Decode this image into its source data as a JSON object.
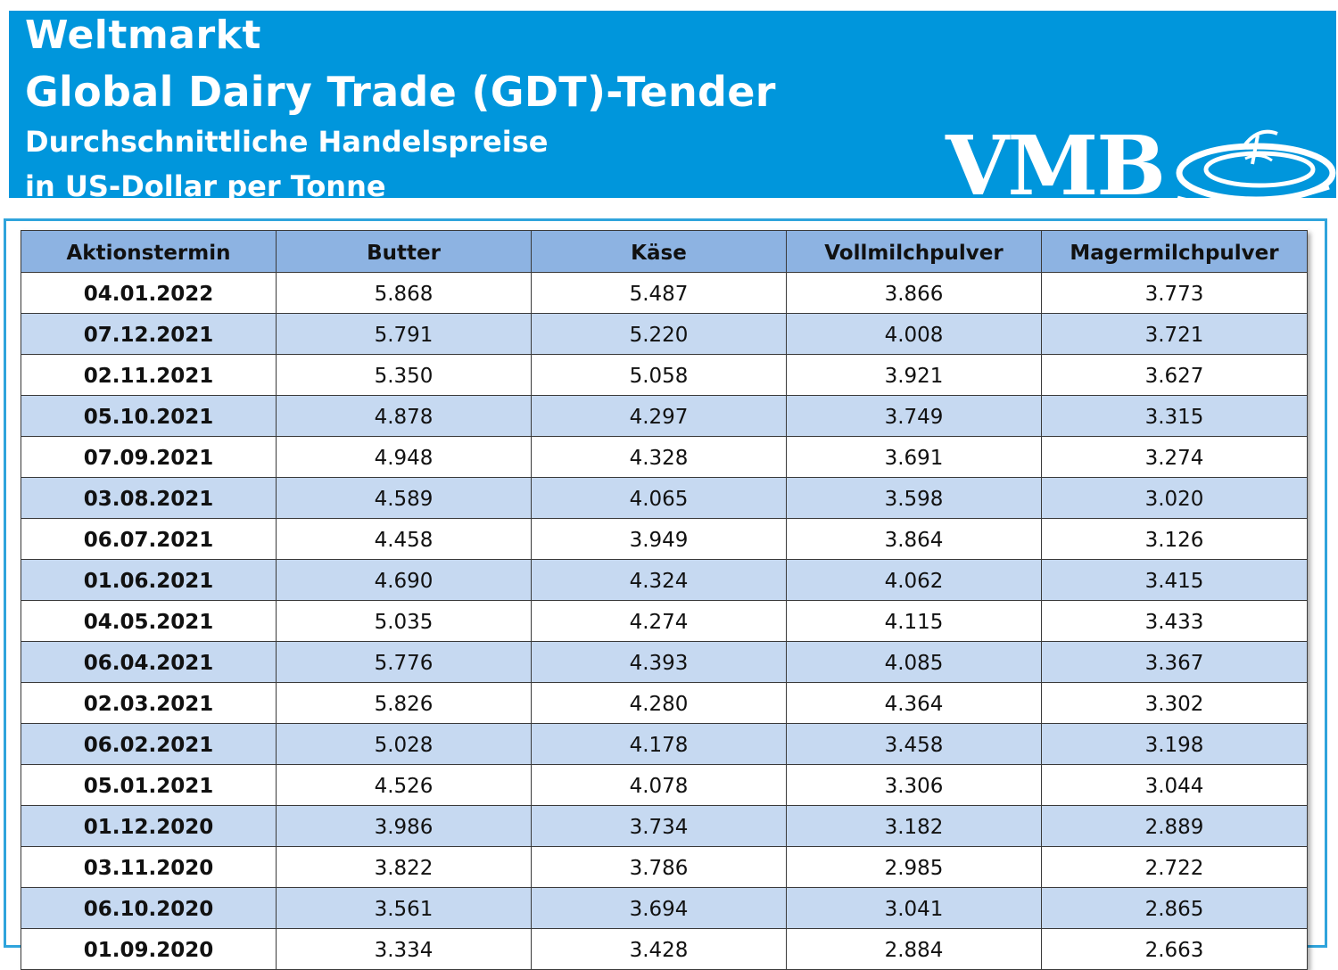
{
  "header": {
    "title_line1": "Weltmarkt",
    "title_line2": "Global Dairy Trade (GDT)-Tender",
    "subtitle_line1": "Durchschnittliche  Handelspreise",
    "subtitle_line2": "in US-Dollar per Tonne",
    "logo_text": "VMB"
  },
  "colors": {
    "header_background": "#0096dc",
    "table_header_background": "#8db3e2",
    "alt_row_background": "#c6d9f1"
  },
  "table": {
    "columns": [
      "Aktionstermin",
      "Butter",
      "Käse",
      "Vollmilchpulver",
      "Magermilchpulver"
    ],
    "rows": [
      [
        "04.01.2022",
        "5.868",
        "5.487",
        "3.866",
        "3.773"
      ],
      [
        "07.12.2021",
        "5.791",
        "5.220",
        "4.008",
        "3.721"
      ],
      [
        "02.11.2021",
        "5.350",
        "5.058",
        "3.921",
        "3.627"
      ],
      [
        "05.10.2021",
        "4.878",
        "4.297",
        "3.749",
        "3.315"
      ],
      [
        "07.09.2021",
        "4.948",
        "4.328",
        "3.691",
        "3.274"
      ],
      [
        "03.08.2021",
        "4.589",
        "4.065",
        "3.598",
        "3.020"
      ],
      [
        "06.07.2021",
        "4.458",
        "3.949",
        "3.864",
        "3.126"
      ],
      [
        "01.06.2021",
        "4.690",
        "4.324",
        "4.062",
        "3.415"
      ],
      [
        "04.05.2021",
        "5.035",
        "4.274",
        "4.115",
        "3.433"
      ],
      [
        "06.04.2021",
        "5.776",
        "4.393",
        "4.085",
        "3.367"
      ],
      [
        "02.03.2021",
        "5.826",
        "4.280",
        "4.364",
        "3.302"
      ],
      [
        "06.02.2021",
        "5.028",
        "4.178",
        "3.458",
        "3.198"
      ],
      [
        "05.01.2021",
        "4.526",
        "4.078",
        "3.306",
        "3.044"
      ],
      [
        "01.12.2020",
        "3.986",
        "3.734",
        "3.182",
        "2.889"
      ],
      [
        "03.11.2020",
        "3.822",
        "3.786",
        "2.985",
        "2.722"
      ],
      [
        "06.10.2020",
        "3.561",
        "3.694",
        "3.041",
        "2.865"
      ],
      [
        "01.09.2020",
        "3.334",
        "3.428",
        "2.884",
        "2.663"
      ]
    ]
  }
}
